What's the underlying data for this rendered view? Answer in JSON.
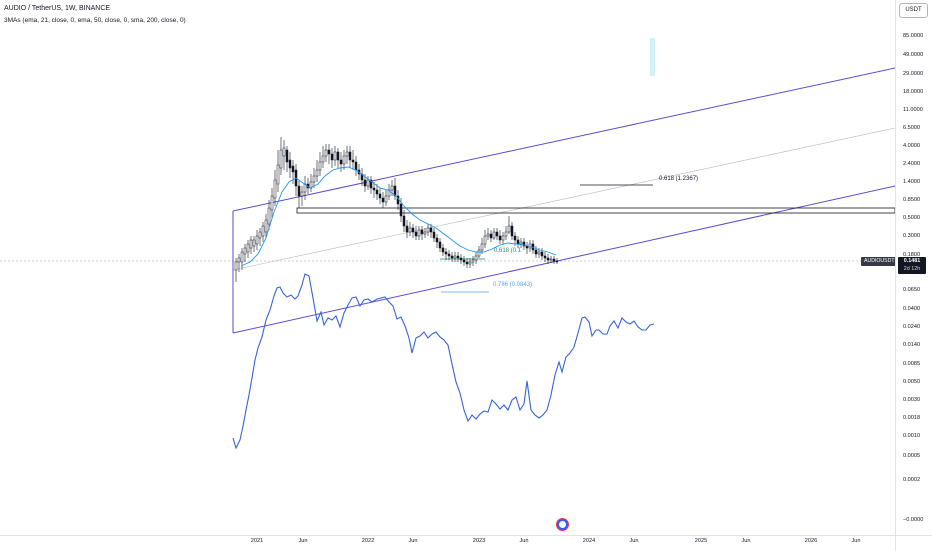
{
  "legend": {
    "symbol": "AUDIO / TetherUS, 1W, BINANCE",
    "indicator": "3MAs (ema, 21, close, 0, ema, 50, close, 0, sma, 200, close, 0)"
  },
  "currency_button": "USDT",
  "price_scale": {
    "ticks": [
      "85.0000",
      "49.0000",
      "29.0000",
      "18.0000",
      "11.0000",
      "6.5000",
      "4.0000",
      "2.4000",
      "1.4000",
      "0.8500",
      "0.5000",
      "0.3000",
      "0.1800",
      "0.0650",
      "0.0400",
      "0.0240",
      "0.0140",
      "0.0085",
      "0.0050",
      "0.0030",
      "0.0018",
      "0.0010",
      "0.0005",
      "0.0002",
      "−0.0000"
    ]
  },
  "time_scale": {
    "ticks": [
      "2021",
      "Jun",
      "2022",
      "Jun",
      "2023",
      "Jun",
      "2024",
      "Jun",
      "2025",
      "Jun",
      "2026",
      "Jun"
    ]
  },
  "current_price": {
    "symbol_tag": "AUDIOUSDT",
    "price": "0.1481",
    "countdown": "2d 12h"
  },
  "fib_labels": {
    "upper": "0.618 (1.2367)",
    "mid": "0.618 (0.1",
    "lower": "0.786 (0.0843)"
  },
  "colors": {
    "channel": "#5b4bcf",
    "blue_line": "#3465d8",
    "ema": "#2196f3",
    "fib_green": "#089981",
    "fib_blue": "#5ba4e8",
    "candle": "#131722"
  }
}
